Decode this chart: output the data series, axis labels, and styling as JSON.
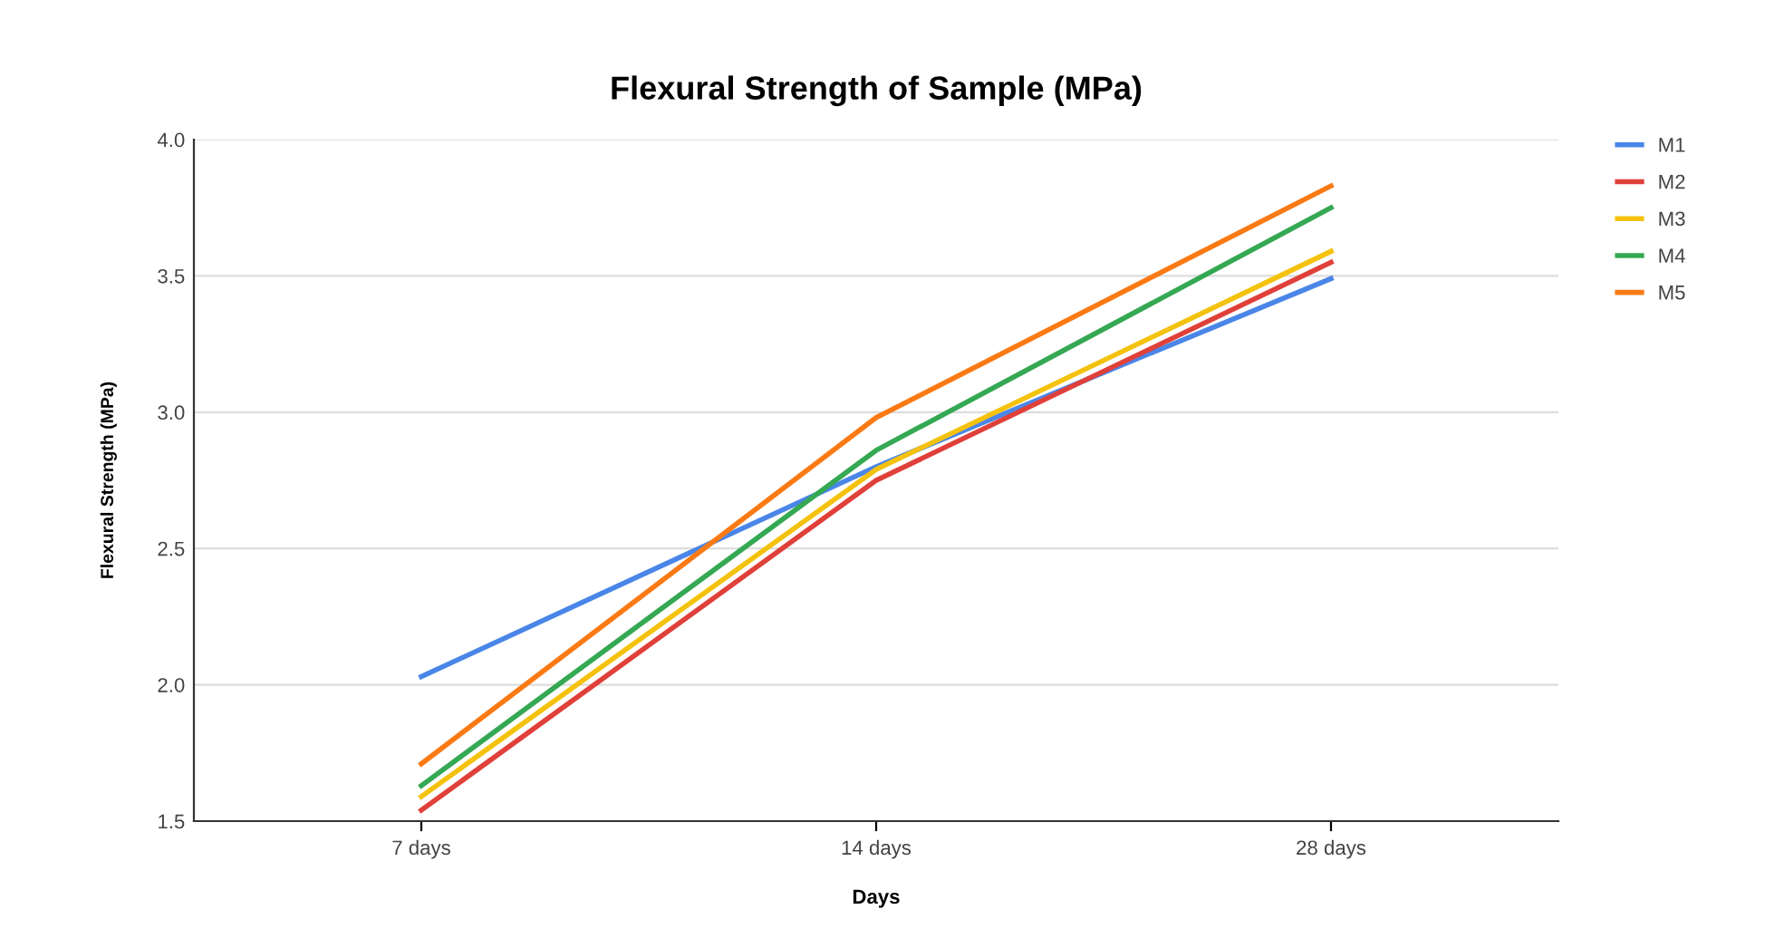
{
  "chart_data": {
    "type": "line",
    "title": "Flexural Strength of Sample (MPa)",
    "xlabel": "Days",
    "ylabel": "Flexural Strength (MPa)",
    "categories": [
      "7 days",
      "14 days",
      "28 days"
    ],
    "series": [
      {
        "name": "M1",
        "color": "#4a86e8",
        "values": [
          2.03,
          2.8,
          3.49
        ]
      },
      {
        "name": "M2",
        "color": "#e0403a",
        "values": [
          1.54,
          2.75,
          3.55
        ]
      },
      {
        "name": "M3",
        "color": "#f4c20d",
        "values": [
          1.59,
          2.79,
          3.59
        ]
      },
      {
        "name": "M4",
        "color": "#35a853",
        "values": [
          1.63,
          2.86,
          3.75
        ]
      },
      {
        "name": "M5",
        "color": "#fb7a14",
        "values": [
          1.71,
          2.98,
          3.83
        ]
      }
    ],
    "ylim": [
      1.5,
      4.0
    ],
    "yticks": [
      {
        "value": 1.5,
        "label": "1.5"
      },
      {
        "value": 2.0,
        "label": "2.0"
      },
      {
        "value": 2.5,
        "label": "2.5"
      },
      {
        "value": 3.0,
        "label": "3.0"
      },
      {
        "value": 3.5,
        "label": "3.5"
      },
      {
        "value": 4.0,
        "label": "4.0"
      }
    ],
    "grid": "y",
    "legend": "top right",
    "marker": "none",
    "line_style": "solid"
  }
}
